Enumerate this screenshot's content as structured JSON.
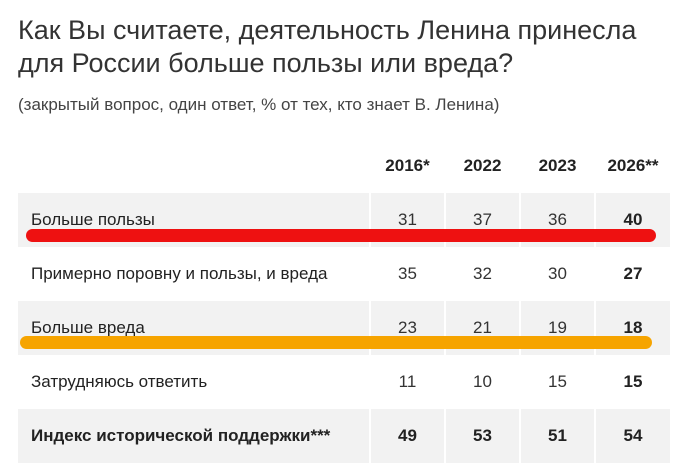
{
  "title": "Как Вы считаете, деятельность Ленина принесла для России больше пользы  или вреда?",
  "subtitle": "(закрытый вопрос, один ответ, % от тех, кто знает В. Ленина)",
  "colors": {
    "highlight_1": "#ee1111",
    "highlight_2": "#f6a400",
    "row_shade": "#f2f2f2"
  },
  "chart_data": {
    "type": "table",
    "title": "Как Вы считаете, деятельность Ленина принесла для России больше пользы  или вреда?",
    "subtitle": "(закрытый вопрос, один ответ, % от тех, кто знает В. Ленина)",
    "columns": [
      "2016*",
      "2022",
      "2023",
      "2026**"
    ],
    "rows": [
      {
        "label": "Больше пользы",
        "values": [
          31,
          37,
          36,
          40
        ]
      },
      {
        "label": "Примерно поровну и пользы, и вреда",
        "values": [
          35,
          32,
          30,
          27
        ]
      },
      {
        "label": "Больше вреда",
        "values": [
          23,
          21,
          19,
          18
        ]
      },
      {
        "label": "Затрудняюсь ответить",
        "values": [
          11,
          10,
          15,
          15
        ]
      },
      {
        "label": "Индекс исторической поддержки***",
        "values": [
          49,
          53,
          51,
          54
        ]
      }
    ],
    "highlighted_rows": [
      "Больше пользы",
      "Больше вреда"
    ]
  }
}
